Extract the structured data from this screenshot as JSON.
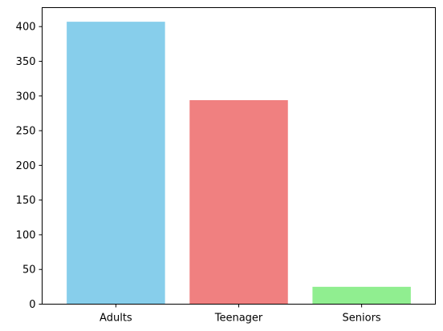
{
  "chart_data": {
    "type": "bar",
    "title": "",
    "xlabel": "",
    "ylabel": "",
    "categories": [
      "Adults",
      "Teenager",
      "Seniors"
    ],
    "values": [
      407,
      294,
      25
    ],
    "colors": [
      "#87ceeb",
      "#f08080",
      "#90ee90"
    ],
    "ylim": [
      0,
      427.35
    ],
    "yticks": [
      0,
      50,
      100,
      150,
      200,
      250,
      300,
      350,
      400
    ],
    "grid": false,
    "legend": "none"
  }
}
